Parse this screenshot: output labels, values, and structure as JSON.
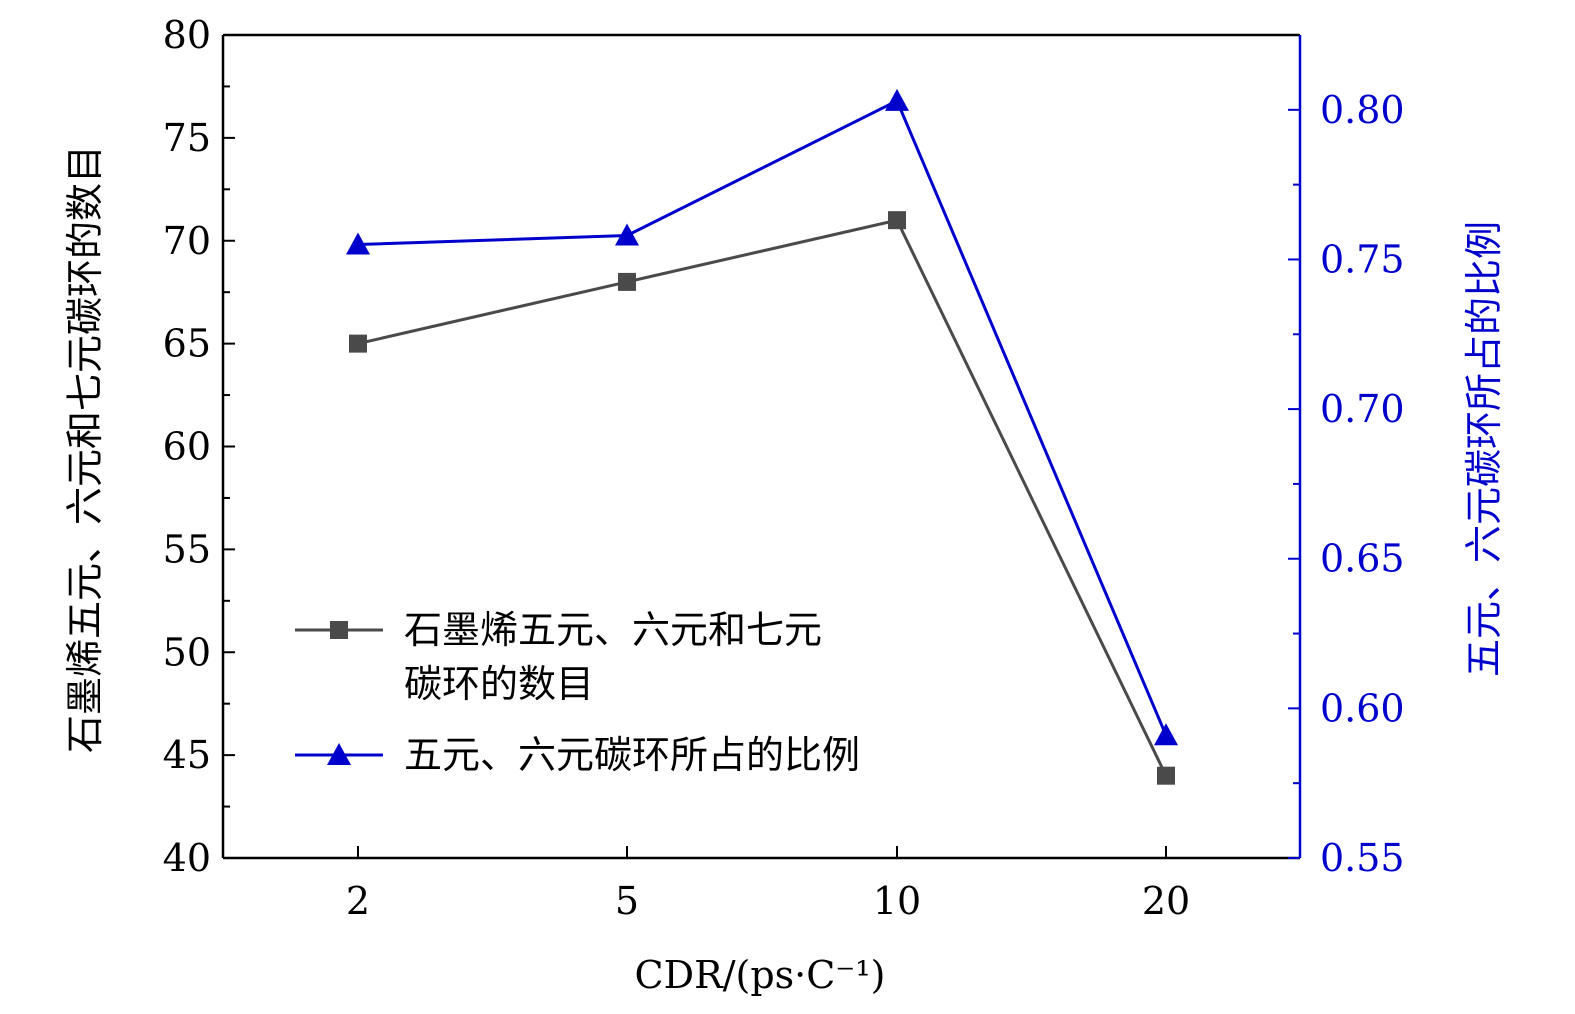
{
  "chart_data": {
    "type": "line",
    "categories": [
      "2",
      "5",
      "10",
      "20"
    ],
    "xlabel": "CDR/(ps·C⁻¹)",
    "ylabel_left": "石墨烯五元、六元和七元碳环的数目",
    "ylabel_right": "五元、六元碳环所占的比例",
    "ylim_left": [
      40,
      80
    ],
    "yticks_left": [
      40,
      45,
      50,
      55,
      60,
      65,
      70,
      75,
      80
    ],
    "ylim_right": [
      0.55,
      0.825
    ],
    "yticks_right": [
      "0.55",
      "0.60",
      "0.65",
      "0.70",
      "0.75",
      "0.80"
    ],
    "grid": false,
    "legend_position": "lower-left",
    "series": [
      {
        "name": "石墨烯五元、六元和七元碳环的数目",
        "legend_lines": [
          "石墨烯五元、六元和七元",
          "碳环的数目"
        ],
        "axis": "left",
        "marker": "square",
        "color": "#4a4a4a",
        "values": [
          65,
          68,
          71,
          44
        ]
      },
      {
        "name": "五元、六元碳环所占的比例",
        "legend_lines": [
          "五元、六元碳环所占的比例"
        ],
        "axis": "right",
        "marker": "triangle",
        "color": "#0000cc",
        "values": [
          0.755,
          0.758,
          0.803,
          0.591
        ]
      }
    ],
    "left_axis_color": "#000000",
    "right_axis_color": "#0000cc"
  }
}
